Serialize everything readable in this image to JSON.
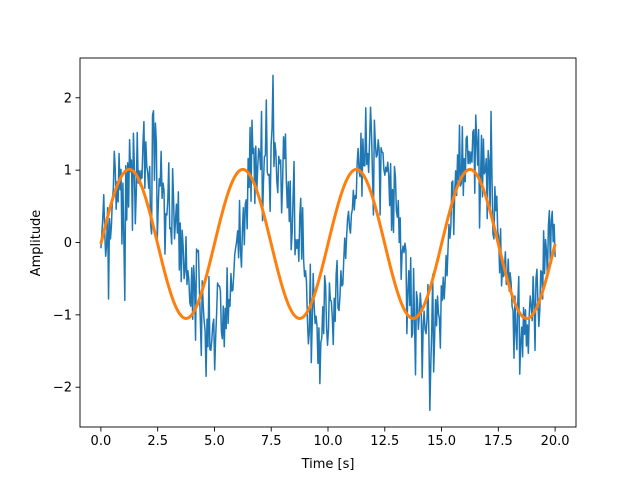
{
  "chart_data": {
    "type": "line",
    "title": "",
    "xlabel": "Time [s]",
    "ylabel": "Amplitude",
    "xlim": [
      -0.92,
      20.92
    ],
    "ylim": [
      -2.55,
      2.55
    ],
    "x_ticks": [
      0.0,
      2.5,
      5.0,
      7.5,
      10.0,
      12.5,
      15.0,
      17.5,
      20.0
    ],
    "x_tick_labels": [
      "0.0",
      "2.5",
      "5.0",
      "7.5",
      "10.0",
      "12.5",
      "15.0",
      "17.5",
      "20.0"
    ],
    "y_ticks": [
      -2,
      -1,
      0,
      1,
      2
    ],
    "y_tick_labels": [
      "−2",
      "−1",
      "0",
      "1",
      "2"
    ],
    "grid": false,
    "legend": "none",
    "series": [
      {
        "role": "noisy signal",
        "color": "#1f77b4",
        "line_width": 1.5,
        "x_start": 0,
        "x_end": 20,
        "n_points": 500,
        "values": [
          -0.08,
          0.12,
          0.35,
          0.66,
          0.15,
          -0.19,
          -0.03,
          0.48,
          -0.78,
          0.33,
          0.05,
          0.23,
          0.59,
          0.74,
          1.26,
          1.02,
          0.46,
          0.84,
          0.56,
          1.23,
          0.73,
          1.01,
          -0.02,
          0.82,
          0.06,
          -0.8,
          1.06,
          0.31,
          1.1,
          0.49,
          1.42,
          0.98,
          1.14,
          0.17,
          1.51,
          1.05,
          0.26,
          0.69,
          1.52,
          0.82,
          0.99,
          0.79,
          0.99,
          0.89,
          1.37,
          1.67,
          0.75,
          1.39,
          1.05,
          0.96,
          0.75,
          1.05,
          0.25,
          0.12,
          1.76,
          1.82,
          0.86,
          1.65,
          1.38,
          0.06,
          0.51,
          0.88,
          0.78,
          1.26,
          0.61,
          0.82,
          0.72,
          -0.16,
          0.4,
          0.38,
          0.59,
          1.1,
          0.19,
          0.2,
          -0.02,
          1.02,
          0.6,
          0.05,
          0.3,
          0.53,
          0.13,
          0.7,
          -0.38,
          0.27,
          -0.54,
          0.17,
          -0.05,
          -0.5,
          -0.4,
          0.08,
          -0.58,
          -0.39,
          -0.52,
          -0.83,
          -0.88,
          -0.35,
          -1.06,
          -0.32,
          -0.56,
          -1.35,
          -0.09,
          -0.13,
          -0.11,
          -0.64,
          -1.07,
          -1.56,
          -0.53,
          -0.87,
          -1.09,
          -1.22,
          -1.85,
          -1.06,
          -1.44,
          -0.47,
          -1.48,
          -1.49,
          -1.35,
          -1.14,
          -1.06,
          -1.76,
          -1.32,
          -0.99,
          -0.56,
          -0.6,
          -0.6,
          -0.67,
          -1.23,
          -1.33,
          -0.88,
          -1.44,
          -0.91,
          -1.19,
          -0.35,
          -1.12,
          -0.79,
          -0.88,
          -0.43,
          -0.67,
          -0.66,
          -0.43,
          -0.16,
          -0.07,
          0.02,
          0.16,
          -0.21,
          0.58,
          -0.11,
          -0.34,
          0.18,
          0.48,
          -0.03,
          0.53,
          0.59,
          0.19,
          1.16,
          0.76,
          1.59,
          0.57,
          1.69,
          1.23,
          1.3,
          0.54,
          1.33,
          0.69,
          1.04,
          1.3,
          1.23,
          1.01,
          1.81,
          0.3,
          0.83,
          1.19,
          1.2,
          1.97,
          0.97,
          0.93,
          0.94,
          0.43,
          1.34,
          1.58,
          2.31,
          1.05,
          1.38,
          1.25,
          0.84,
          0.69,
          1.19,
          1.09,
          1.14,
          0.41,
          0.8,
          1.46,
          1.16,
          1.5,
          0.82,
          0.48,
          0.84,
          0.29,
          0.85,
          -0.1,
          0.13,
          0.63,
          1.12,
          -0.17,
          0.04,
          -0.08,
          0.04,
          -0.26,
          0.37,
          0.61,
          -0.23,
          0.48,
          -0.24,
          -0.47,
          -0.39,
          -0.54,
          -1.08,
          -1.4,
          -1.23,
          -0.3,
          -1.66,
          -1.12,
          -0.43,
          -0.86,
          -1.12,
          -1.02,
          -1.15,
          -1.67,
          -1.18,
          -1.95,
          -1.38,
          -1.32,
          -0.89,
          -1.26,
          -0.46,
          -0.59,
          -1.17,
          -1.42,
          -1.2,
          -0.56,
          -0.8,
          -0.81,
          -1.04,
          -1.41,
          -0.77,
          -1.09,
          -0.45,
          -0.25,
          -0.91,
          -0.94,
          -0.75,
          -0.39,
          -0.6,
          -0.58,
          -0.23,
          0.06,
          -0.22,
          0.09,
          0.33,
          0.43,
          0.21,
          0.13,
          0.39,
          0.46,
          0.72,
          0.45,
          0.65,
          0.61,
          1.1,
          1.3,
          0.98,
          0.91,
          1.51,
          0.64,
          1.43,
          1.06,
          1.06,
          1.86,
          1.08,
          1.23,
          0.97,
          1.41,
          1.87,
          1.51,
          0.95,
          0.38,
          1.69,
          1.38,
          1.18,
          1.21,
          1.42,
          1.28,
          0.38,
          1.31,
          1.25,
          1.24,
          1.0,
          0.93,
          1.04,
          0.98,
          1.11,
          0.93,
          0.51,
          1.09,
          0.17,
          0.73,
          0.14,
          1.05,
          0.91,
          0.44,
          0.35,
          0.58,
          0.0,
          0.34,
          -0.51,
          -0.14,
          -0.05,
          -0.14,
          -0.01,
          -0.11,
          -1.26,
          -0.68,
          -0.39,
          -0.87,
          -0.21,
          -1.31,
          -1.26,
          -0.36,
          -1.09,
          -1.83,
          -0.68,
          -0.79,
          -1.2,
          -1.0,
          -0.7,
          -0.89,
          -1.87,
          -1.16,
          -0.95,
          -1.2,
          -1.26,
          -1.07,
          -0.58,
          -1.27,
          -2.32,
          -1.69,
          -1.21,
          -0.44,
          -1.79,
          -1.32,
          -0.79,
          -1.15,
          -0.74,
          -0.98,
          -1.05,
          -1.46,
          -0.6,
          -0.8,
          -0.48,
          -0.78,
          -0.54,
          -0.18,
          -0.46,
          -0.09,
          0.25,
          0.06,
          0.24,
          0.83,
          0.85,
          0.11,
          0.69,
          0.99,
          0.65,
          1.21,
          0.86,
          1.62,
          0.78,
          0.82,
          1.6,
          0.65,
          1.16,
          0.84,
          1.44,
          1.47,
          1.09,
          1.26,
          1.09,
          1.25,
          1.11,
          1.53,
          1.56,
          0.68,
          1.76,
          1.43,
          1.07,
          1.56,
          0.2,
          0.86,
          1.48,
          0.63,
          1.43,
          0.95,
          0.99,
          1.16,
          0.33,
          1.27,
          1.11,
          0.41,
          1.81,
          0.89,
          0.12,
          0.05,
          0.77,
          0.44,
          0.64,
          0.15,
          0.08,
          -0.42,
          0.19,
          -0.6,
          -0.31,
          -0.47,
          -0.36,
          -0.13,
          -0.58,
          -0.52,
          -0.23,
          -0.67,
          -0.42,
          -0.56,
          -0.88,
          -0.94,
          -1.6,
          -0.74,
          -1.22,
          -1.48,
          -0.82,
          -0.47,
          -1.82,
          -1.39,
          -1.17,
          -1.58,
          -0.9,
          -1.27,
          -0.93,
          -1.43,
          -1.14,
          -1.53,
          -0.98,
          -0.74,
          -0.88,
          -1.08,
          -0.47,
          -0.82,
          -1.49,
          -0.5,
          -0.37,
          -0.81,
          -1.16,
          -0.92,
          -0.39,
          -0.41,
          -0.78,
          0.16,
          -0.43,
          0.04,
          -0.12,
          -0.49,
          0.24,
          0.44,
          -0.31,
          0.3,
          0.43,
          0.01,
          0.25,
          -0.2
        ]
      },
      {
        "role": "fitted sine",
        "color": "#ff7f0e",
        "line_width": 3,
        "x_start": 0,
        "x_end": 20,
        "amplitude": 1.03,
        "period": 5.0,
        "phase": -0.02
      }
    ]
  }
}
